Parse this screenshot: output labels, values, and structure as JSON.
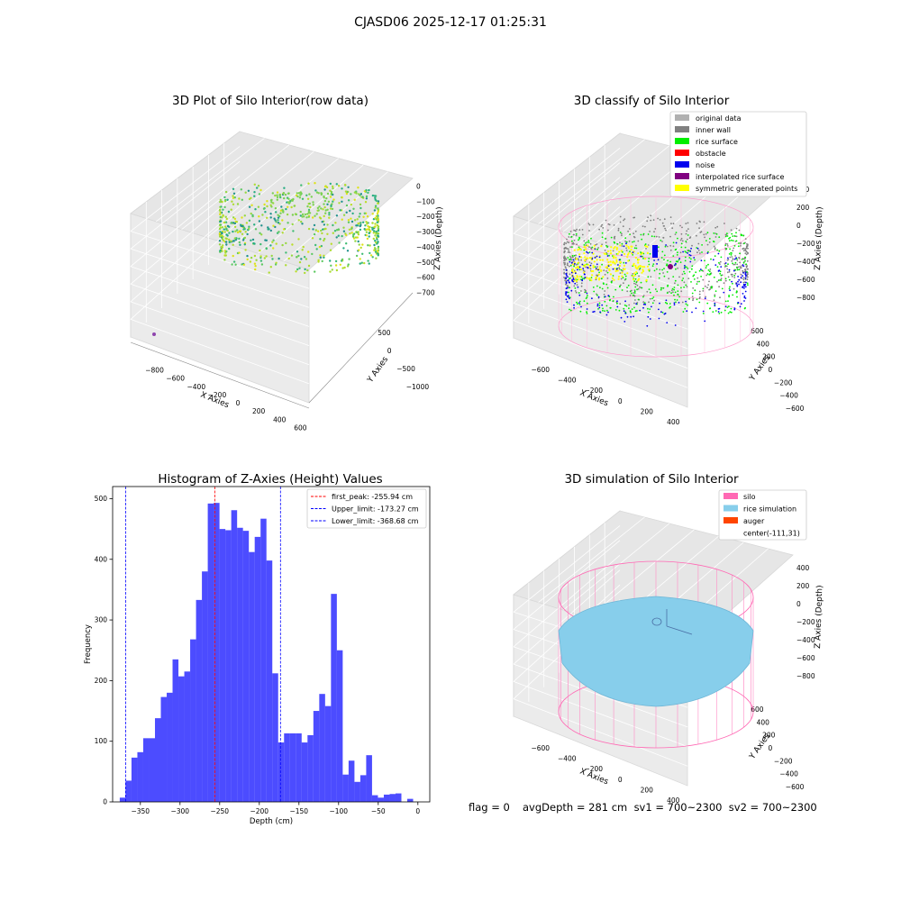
{
  "suptitle": "CJASD06 2025-12-17 01:25:31",
  "panels": {
    "raw": {
      "title": "3D Plot of Silo Interior(row data)",
      "xlabel": "X Axies",
      "ylabel": "Y Axies",
      "zlabel": "Z Axies (Depth)",
      "xticks": [
        "−800",
        "−600",
        "−400",
        "−200",
        "0",
        "200",
        "400",
        "600"
      ],
      "yticks": [
        "500",
        "0",
        "−500",
        "−1000"
      ],
      "zticks": [
        "0",
        "−100",
        "−200",
        "−300",
        "−400",
        "−500",
        "−600",
        "−700"
      ]
    },
    "classify": {
      "title": "3D classify of Silo Interior",
      "xlabel": "X Axies",
      "ylabel": "Y Axies",
      "zlabel": "Z Axies (Depth)",
      "xticks": [
        "−600",
        "−400",
        "−200",
        "0",
        "200",
        "400"
      ],
      "yticks": [
        "600",
        "400",
        "200",
        "0",
        "−200",
        "−400",
        "−600"
      ],
      "zticks": [
        "400",
        "200",
        "0",
        "−200",
        "−400",
        "−600",
        "−800"
      ],
      "legend": [
        {
          "label": "original data",
          "color": "#b0b0b0"
        },
        {
          "label": "inner wall",
          "color": "#808080"
        },
        {
          "label": "rice surface",
          "color": "#00ee00"
        },
        {
          "label": "obstacle",
          "color": "#ff0000"
        },
        {
          "label": "noise",
          "color": "#0000ee"
        },
        {
          "label": "interpolated rice surface",
          "color": "#800080"
        },
        {
          "label": "symmetric generated points",
          "color": "#ffff00"
        }
      ]
    },
    "simulation": {
      "title": "3D simulation of Silo Interior",
      "xlabel": "X Axies",
      "ylabel": "Y Axies",
      "zlabel": "Z Axies (Depth)",
      "xticks": [
        "−600",
        "−400",
        "−200",
        "0",
        "200",
        "400"
      ],
      "yticks": [
        "600",
        "400",
        "200",
        "0",
        "−200",
        "−400",
        "−600"
      ],
      "zticks": [
        "400",
        "200",
        "0",
        "−200",
        "−400",
        "−600",
        "−800"
      ],
      "legend": [
        {
          "label": "silo",
          "color": "#ff69b4"
        },
        {
          "label": "rice simulation",
          "color": "#87ceeb"
        },
        {
          "label": "auger",
          "color": "#ff4500"
        },
        {
          "label": "center(-111,31)",
          "color": ""
        }
      ]
    }
  },
  "chart_data": [
    {
      "type": "scatter",
      "title": "3D Plot of Silo Interior(row data)",
      "xlabel": "X Axies",
      "ylabel": "Y Axies",
      "zlabel": "Z Axies (Depth)",
      "xlim": [
        -900,
        650
      ],
      "ylim": [
        -1200,
        650
      ],
      "zlim": [
        -750,
        50
      ]
    },
    {
      "type": "scatter",
      "title": "3D classify of Silo Interior",
      "xlabel": "X Axies",
      "ylabel": "Y Axies",
      "zlabel": "Z Axies (Depth)",
      "xlim": [
        -700,
        500
      ],
      "ylim": [
        -650,
        650
      ],
      "zlim": [
        -900,
        450
      ],
      "series": [
        {
          "name": "original data"
        },
        {
          "name": "inner wall"
        },
        {
          "name": "rice surface"
        },
        {
          "name": "obstacle"
        },
        {
          "name": "noise"
        },
        {
          "name": "interpolated rice surface"
        },
        {
          "name": "symmetric generated points"
        }
      ]
    },
    {
      "type": "bar",
      "title": "Histogram of Z-Axies (Height) Values",
      "xlabel": "Depth (cm)",
      "ylabel": "Frequency",
      "xlim": [
        -385,
        15
      ],
      "ylim": [
        0,
        520
      ],
      "xticks": [
        -350,
        -300,
        -250,
        -200,
        -150,
        -100,
        -50,
        0
      ],
      "yticks": [
        0,
        100,
        200,
        300,
        400,
        500
      ],
      "bin_start": -376,
      "bin_width": 7.4,
      "values": [
        7,
        35,
        73,
        82,
        105,
        105,
        138,
        173,
        180,
        235,
        207,
        215,
        268,
        333,
        380,
        492,
        493,
        450,
        448,
        481,
        452,
        447,
        412,
        437,
        467,
        398,
        212,
        98,
        113,
        113,
        113,
        98,
        110,
        150,
        178,
        158,
        343,
        250,
        45,
        68,
        33,
        44,
        77,
        11,
        7,
        12,
        13,
        14,
        0,
        5
      ],
      "vlines": [
        {
          "label": "first_peak: -255.94 cm",
          "x": -255.94,
          "color": "#ff0000"
        },
        {
          "label": "Upper_limit: -173.27 cm",
          "x": -173.27,
          "color": "#0000ff"
        },
        {
          "label": "Lower_limit: -368.68 cm",
          "x": -368.68,
          "color": "#0000ff"
        }
      ],
      "bar_color": "#0000ff"
    },
    {
      "type": "scatter",
      "title": "3D simulation of Silo Interior",
      "xlabel": "X Axies",
      "ylabel": "Y Axies",
      "zlabel": "Z Axies (Depth)",
      "xlim": [
        -700,
        500
      ],
      "ylim": [
        -650,
        650
      ],
      "zlim": [
        -900,
        450
      ],
      "series": [
        {
          "name": "silo"
        },
        {
          "name": "rice simulation"
        },
        {
          "name": "auger"
        },
        {
          "name": "center(-111,31)"
        }
      ]
    }
  ],
  "histogram": {
    "title": "Histogram of Z-Axies (Height) Values",
    "xlabel": "Depth (cm)",
    "ylabel": "Frequency"
  },
  "status": {
    "flag": "flag = 0",
    "avg": "avgDepth = 281 cm  sv1 = 700~2300  sv2 = 700~2300"
  }
}
